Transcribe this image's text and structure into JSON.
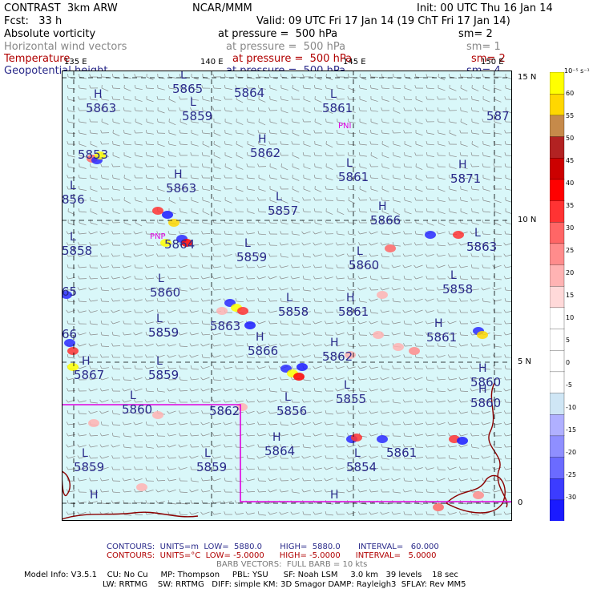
{
  "header": {
    "left1": "CONTRAST  3km ARW",
    "center1": "NCAR/MMM",
    "right1": "Init: 00 UTC Thu 16 Jan 14",
    "left2": "Fcst:   33 h",
    "right2": "Valid: 09 UTC Fri 17 Jan 14 (19 ChT Fri 17 Jan 14)",
    "fields": [
      {
        "name": "Absolute vorticity",
        "level": "at pressure =  500 hPa",
        "sm": "sm= 2",
        "color": "#000000"
      },
      {
        "name": "Horizontal wind vectors",
        "level": "at pressure =  500 hPa",
        "sm": "sm= 1",
        "color": "#888888"
      },
      {
        "name": "Temperature",
        "level": "at pressure =  500 hPa",
        "sm": "sm= 2",
        "color": "#b00000"
      },
      {
        "name": "Geopotential height",
        "level": "at pressure =  500 hPa",
        "sm": "sm= 4",
        "color": "#2a2a8a"
      }
    ]
  },
  "map": {
    "background": "#d9f7f9",
    "lon_labels": [
      "135 E",
      "140 E",
      "145 E",
      "150 E"
    ],
    "lat_labels": [
      "15 N",
      "10 N",
      "5 N",
      "0"
    ],
    "height_labels": [
      {
        "letter": "L",
        "value": "5865"
      },
      {
        "letter": "",
        "value": "5864"
      },
      {
        "letter": "H",
        "value": "5863"
      },
      {
        "letter": "L",
        "value": "5859"
      },
      {
        "letter": "L",
        "value": "5861"
      },
      {
        "letter": "",
        "value": "587"
      },
      {
        "letter": "",
        "value": "5853"
      },
      {
        "letter": "H",
        "value": "5862"
      },
      {
        "letter": "H",
        "value": "5863"
      },
      {
        "letter": "L",
        "value": "5861"
      },
      {
        "letter": "H",
        "value": "5871"
      },
      {
        "letter": "L",
        "value": "856"
      },
      {
        "letter": "L",
        "value": "5857"
      },
      {
        "letter": "H",
        "value": "5866"
      },
      {
        "letter": "L",
        "value": "5858"
      },
      {
        "letter": "",
        "value": "5864"
      },
      {
        "letter": "L",
        "value": "5859"
      },
      {
        "letter": "L",
        "value": "5860"
      },
      {
        "letter": "L",
        "value": "5863"
      },
      {
        "letter": "",
        "value": "65"
      },
      {
        "letter": "L",
        "value": "5860"
      },
      {
        "letter": "L",
        "value": "5858"
      },
      {
        "letter": "H",
        "value": "5861"
      },
      {
        "letter": "L",
        "value": "5858"
      },
      {
        "letter": "L",
        "value": "5859"
      },
      {
        "letter": "",
        "value": "5863"
      },
      {
        "letter": "H",
        "value": "5861"
      },
      {
        "letter": "",
        "value": "66"
      },
      {
        "letter": "H",
        "value": "5866"
      },
      {
        "letter": "H",
        "value": "5862"
      },
      {
        "letter": "H",
        "value": "5867"
      },
      {
        "letter": "L",
        "value": "5859"
      },
      {
        "letter": "H",
        "value": "5860"
      },
      {
        "letter": "L",
        "value": "5860"
      },
      {
        "letter": "",
        "value": "5862"
      },
      {
        "letter": "L",
        "value": "5856"
      },
      {
        "letter": "L",
        "value": "5855"
      },
      {
        "letter": "L",
        "value": "5859"
      },
      {
        "letter": "L",
        "value": "5859"
      },
      {
        "letter": "H",
        "value": "5864"
      },
      {
        "letter": "L",
        "value": "5854"
      },
      {
        "letter": "",
        "value": "5861"
      },
      {
        "letter": "H",
        "value": ""
      },
      {
        "letter": "H",
        "value": ""
      },
      {
        "letter": "H",
        "value": "5860"
      }
    ],
    "markers": [
      "PNI",
      "PNP"
    ]
  },
  "colorbar": {
    "unit": "10⁻⁵ s⁻¹",
    "labels": [
      "60",
      "55",
      "50",
      "45",
      "40",
      "35",
      "30",
      "25",
      "20",
      "15",
      "10",
      "5",
      "0",
      "-5",
      "-10",
      "-15",
      "-20",
      "-25",
      "-30"
    ],
    "colors": [
      "#1a1aff",
      "#3c3cff",
      "#6b6bff",
      "#8f8fff",
      "#b0b0ff",
      "#cfe6f5",
      "#ffffff",
      "#ffffff",
      "#ffffff",
      "#ffffff",
      "#ffd9d9",
      "#ffb3b3",
      "#ff8c8c",
      "#ff6666",
      "#ff3333",
      "#ff0000",
      "#cc0000",
      "#b22222",
      "#c68a4a",
      "#ffd700",
      "#ffff00"
    ]
  },
  "footer": {
    "line1": "CONTOURS:  UNITS=m  LOW=  5880.0       HIGH=  5880.0       INTERVAL=   60.000",
    "line2": "CONTOURS:  UNITS=°C  LOW= -5.0000      HIGH= -5.0000      INTERVAL=   5.0000",
    "line3": "BARB VECTORS:  FULL BARB = 10 kts",
    "line4": "Model Info: V3.5.1    CU: No Cu     MP: Thompson     PBL: YSU      SF: Noah LSM     3.0 km   39 levels    18 sec",
    "line5": "LW: RRTMG    SW: RRTMG   DIFF: simple KM: 3D Smagor DAMP: Rayleigh3  SFLAY: Rev MM5"
  }
}
